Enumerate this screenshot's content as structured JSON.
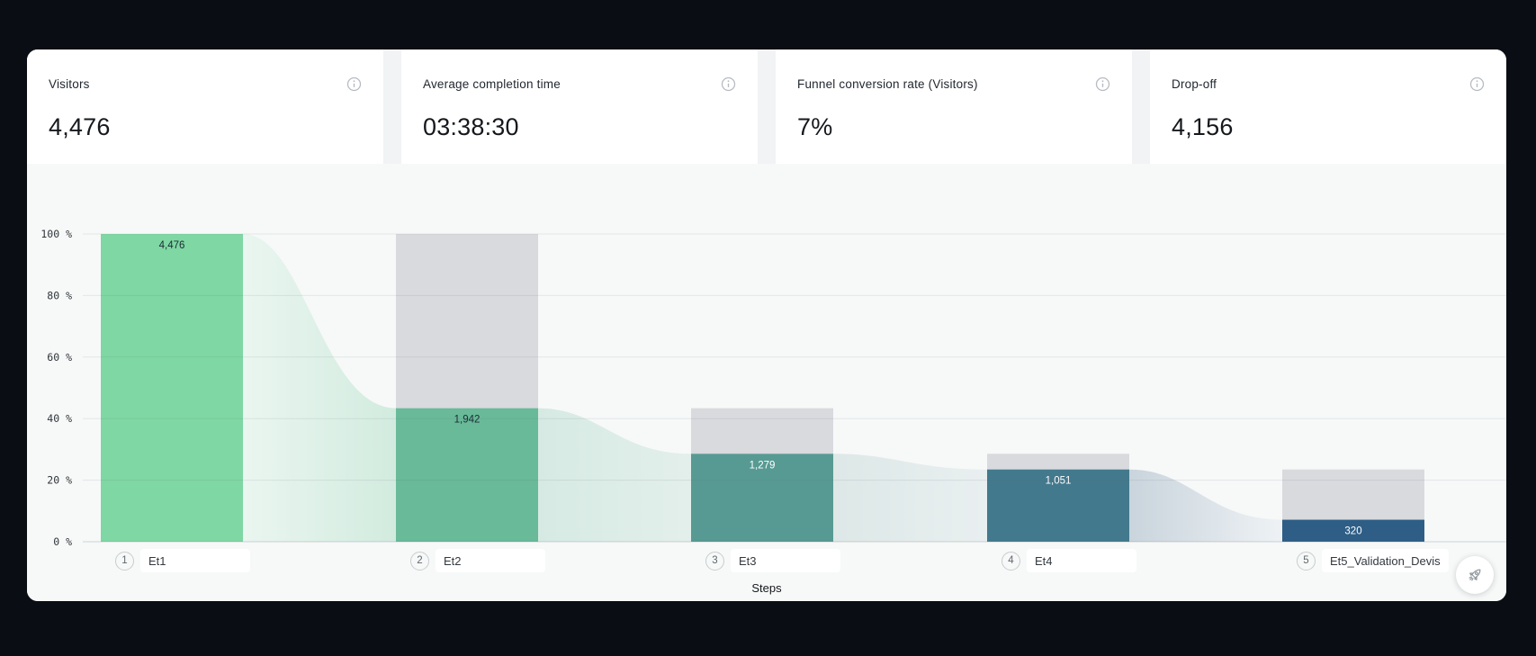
{
  "kpis": [
    {
      "label": "Visitors",
      "value": "4,476"
    },
    {
      "label": "Average completion time",
      "value": "03:38:30"
    },
    {
      "label": "Funnel conversion rate (Visitors)",
      "value": "7%"
    },
    {
      "label": "Drop-off",
      "value": "4,156"
    }
  ],
  "icons": {
    "kpi_info": "info-circle",
    "floating_action": "rocket"
  },
  "theme": {
    "page_bg": "#0a0d13",
    "card_bg": "#ffffff",
    "chart_bg": "#f7f9f8",
    "kpi_gap_bg": "#f1f3f4"
  },
  "chart_data": {
    "type": "bar",
    "subtype": "funnel",
    "title": "",
    "xlabel": "Steps",
    "ylabel": "%",
    "ylim": [
      0,
      100
    ],
    "grid": true,
    "y_ticks": [
      "0 %",
      "20 %",
      "40 %",
      "60 %",
      "80 %",
      "100 %"
    ],
    "step_numbers": [
      "1",
      "2",
      "3",
      "4",
      "5"
    ],
    "categories": [
      "Et1",
      "Et2",
      "Et3",
      "Et4",
      "Et5_Validation_Devis"
    ],
    "values": [
      4476,
      1942,
      1279,
      1051,
      320
    ],
    "value_labels": [
      "4,476",
      "1,942",
      "1,279",
      "1,051",
      "320"
    ],
    "percent_of_first": [
      100,
      43.4,
      28.6,
      23.5,
      7.1
    ],
    "bar_colors": [
      "#7fd7a3",
      "#68ba99",
      "#579a93",
      "#43798d",
      "#2e5e86"
    ],
    "remainder_color": "#d9dade",
    "value_label_colors": [
      "#1c2b33",
      "#1c2b33",
      "#ffffff",
      "#ffffff",
      "#ffffff"
    ],
    "flow_gradients": [
      [
        "#eaf6f0",
        "#d2ebdf"
      ],
      [
        "#d6eae3",
        "#e3efeb"
      ],
      [
        "#dde8e7",
        "#e9eff0"
      ],
      [
        "#c9d4dc",
        "#eef2f5"
      ]
    ],
    "tick_label_color": "#30353a",
    "grid_color": "rgba(100,110,115,0.13)",
    "axis_line_color": "rgba(100,110,115,0.28)"
  }
}
